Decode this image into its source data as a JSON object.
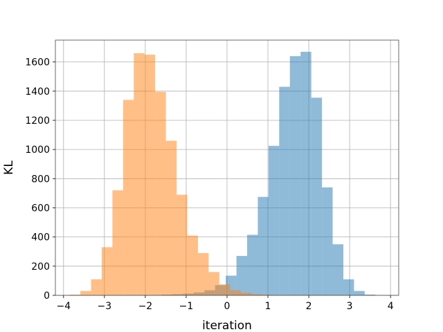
{
  "chart_data": {
    "type": "bar",
    "subtype": "histogram-overlay",
    "xlabel": "iteration",
    "ylabel": "KL",
    "xlim": [
      -4.2,
      4.2
    ],
    "ylim": [
      0,
      1750
    ],
    "xticks": [
      -4,
      -3,
      -2,
      -1,
      0,
      1,
      2,
      3,
      4
    ],
    "yticks": [
      0,
      200,
      400,
      600,
      800,
      1000,
      1200,
      1400,
      1600
    ],
    "grid": true,
    "series": [
      {
        "color": "#1f77b4",
        "opacity": 0.5,
        "bin_start": -1.6,
        "bin_width": 0.2615,
        "counts": [
          5,
          8,
          12,
          20,
          35,
          70,
          135,
          270,
          415,
          675,
          1025,
          1430,
          1640,
          1670,
          1355,
          740,
          350,
          110,
          30,
          5
        ]
      },
      {
        "color": "#ff7f0e",
        "opacity": 0.5,
        "bin_start": -3.85,
        "bin_width": 0.2615,
        "counts": [
          5,
          30,
          110,
          330,
          720,
          1340,
          1660,
          1650,
          1395,
          1060,
          690,
          410,
          290,
          160,
          75,
          35,
          18,
          8,
          4,
          2
        ]
      }
    ]
  }
}
